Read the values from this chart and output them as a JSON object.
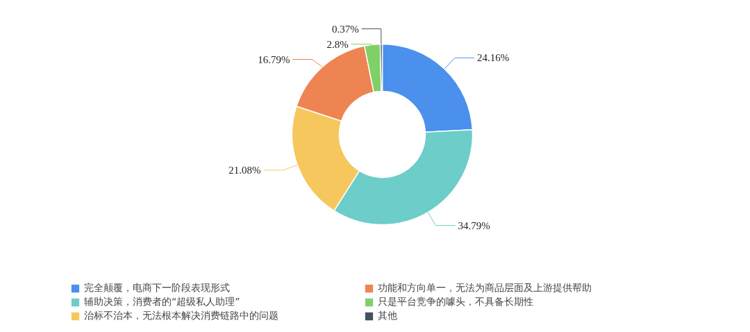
{
  "chart_data": {
    "type": "donut",
    "categories": [
      "完全颠覆，电商下一阶段表现形式",
      "辅助决策，消费者的“超级私人助理”",
      "治标不治本，无法根本解决消费链路中的问题",
      "功能和方向单一，无法为商品层面及上游提供帮助",
      "只是平台竞争的噱头，不具备长期性",
      "其他"
    ],
    "values": [
      24.16,
      34.79,
      21.08,
      16.79,
      2.8,
      0.37
    ],
    "colors": [
      "#4a90ec",
      "#6ccdc9",
      "#f5c75c",
      "#ee8452",
      "#80d068",
      "#44525e"
    ],
    "value_labels": [
      "24.16%",
      "34.79%",
      "21.08%",
      "16.79%",
      "2.8%",
      "0.37%"
    ],
    "legend": "bottom"
  }
}
